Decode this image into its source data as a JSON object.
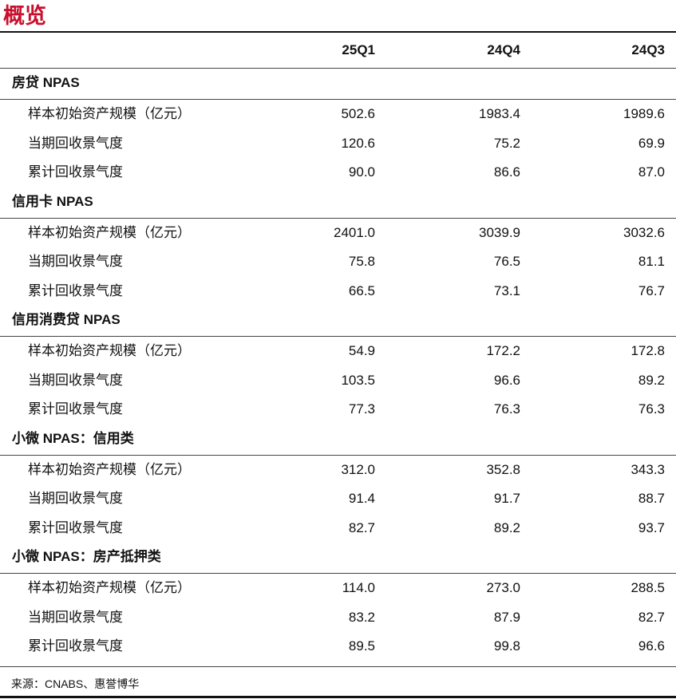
{
  "title": "概览",
  "columns": [
    "25Q1",
    "24Q4",
    "24Q3"
  ],
  "sections": [
    {
      "title": "房贷 NPAS",
      "rows": [
        {
          "label": "样本初始资产规模（亿元）",
          "values": [
            "502.6",
            "1983.4",
            "1989.6"
          ]
        },
        {
          "label": "当期回收景气度",
          "values": [
            "120.6",
            "75.2",
            "69.9"
          ]
        },
        {
          "label": "累计回收景气度",
          "values": [
            "90.0",
            "86.6",
            "87.0"
          ]
        }
      ]
    },
    {
      "title": "信用卡 NPAS",
      "rows": [
        {
          "label": "样本初始资产规模（亿元）",
          "values": [
            "2401.0",
            "3039.9",
            "3032.6"
          ]
        },
        {
          "label": "当期回收景气度",
          "values": [
            "75.8",
            "76.5",
            "81.1"
          ]
        },
        {
          "label": "累计回收景气度",
          "values": [
            "66.5",
            "73.1",
            "76.7"
          ]
        }
      ]
    },
    {
      "title": "信用消费贷 NPAS",
      "rows": [
        {
          "label": "样本初始资产规模（亿元）",
          "values": [
            "54.9",
            "172.2",
            "172.8"
          ]
        },
        {
          "label": "当期回收景气度",
          "values": [
            "103.5",
            "96.6",
            "89.2"
          ]
        },
        {
          "label": "累计回收景气度",
          "values": [
            "77.3",
            "76.3",
            "76.3"
          ]
        }
      ]
    },
    {
      "title": "小微 NPAS：信用类",
      "rows": [
        {
          "label": "样本初始资产规模（亿元）",
          "values": [
            "312.0",
            "352.8",
            "343.3"
          ]
        },
        {
          "label": "当期回收景气度",
          "values": [
            "91.4",
            "91.7",
            "88.7"
          ]
        },
        {
          "label": "累计回收景气度",
          "values": [
            "82.7",
            "89.2",
            "93.7"
          ]
        }
      ]
    },
    {
      "title": "小微 NPAS：房产抵押类",
      "rows": [
        {
          "label": "样本初始资产规模（亿元）",
          "values": [
            "114.0",
            "273.0",
            "288.5"
          ]
        },
        {
          "label": "当期回收景气度",
          "values": [
            "83.2",
            "87.9",
            "82.7"
          ]
        },
        {
          "label": "累计回收景气度",
          "values": [
            "89.5",
            "99.8",
            "96.6"
          ]
        }
      ]
    }
  ],
  "source": "来源：CNABS、惠誉博华"
}
